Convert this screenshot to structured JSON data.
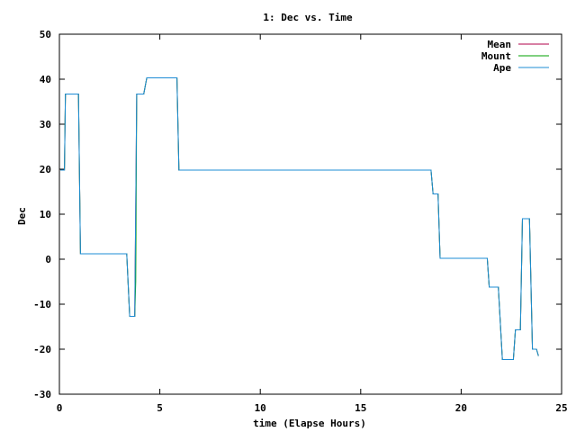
{
  "chart_data": {
    "type": "line",
    "title": "1: Dec vs. Time",
    "xlabel": "time (Elapse Hours)",
    "ylabel": "Dec",
    "xlim": [
      0,
      25
    ],
    "ylim": [
      -30,
      50
    ],
    "xticks": [
      0,
      5,
      10,
      15,
      20,
      25
    ],
    "yticks": [
      -30,
      -20,
      -10,
      0,
      10,
      20,
      30,
      40,
      50
    ],
    "grid": false,
    "legend_position": "top-right",
    "series": [
      {
        "name": "Mean",
        "color": "#b0004a",
        "points": [
          [
            0.05,
            19.8
          ],
          [
            0.25,
            19.8
          ],
          [
            0.3,
            36.7
          ],
          [
            0.95,
            36.7
          ],
          [
            1.05,
            1.2
          ],
          [
            3.35,
            1.2
          ],
          [
            3.5,
            -12.7
          ],
          [
            3.75,
            -12.7
          ],
          [
            3.85,
            36.7
          ],
          [
            4.2,
            36.7
          ],
          [
            4.35,
            40.3
          ],
          [
            5.85,
            40.3
          ],
          [
            5.95,
            19.8
          ],
          [
            18.5,
            19.8
          ],
          [
            18.6,
            14.5
          ],
          [
            18.85,
            14.5
          ],
          [
            18.95,
            0.2
          ],
          [
            21.3,
            0.2
          ],
          [
            21.4,
            -6.2
          ],
          [
            21.85,
            -6.2
          ],
          [
            22.05,
            -22.3
          ],
          [
            22.6,
            -22.3
          ],
          [
            22.7,
            -15.7
          ],
          [
            22.95,
            -15.7
          ],
          [
            23.05,
            9.0
          ],
          [
            23.4,
            9.0
          ],
          [
            23.55,
            -20.0
          ],
          [
            23.75,
            -20.0
          ],
          [
            23.85,
            -21.5
          ]
        ]
      },
      {
        "name": "Mount",
        "color": "#00a000",
        "points": [
          [
            0.05,
            19.8
          ],
          [
            0.25,
            19.8
          ],
          [
            0.3,
            36.7
          ],
          [
            0.95,
            36.7
          ],
          [
            1.05,
            1.2
          ],
          [
            3.35,
            1.2
          ],
          [
            3.5,
            -12.7
          ],
          [
            3.75,
            -12.7
          ],
          [
            3.8,
            -5.0
          ],
          [
            3.85,
            36.7
          ],
          [
            4.2,
            36.7
          ],
          [
            4.35,
            40.3
          ],
          [
            5.85,
            40.3
          ],
          [
            5.95,
            19.8
          ],
          [
            18.5,
            19.8
          ],
          [
            18.6,
            14.5
          ],
          [
            18.85,
            14.5
          ],
          [
            18.95,
            0.2
          ],
          [
            21.3,
            0.2
          ],
          [
            21.4,
            -6.2
          ],
          [
            21.85,
            -6.2
          ],
          [
            22.05,
            -22.3
          ],
          [
            22.6,
            -22.3
          ],
          [
            22.7,
            -15.7
          ],
          [
            22.95,
            -15.7
          ],
          [
            23.05,
            9.0
          ],
          [
            23.4,
            9.0
          ],
          [
            23.55,
            -20.0
          ],
          [
            23.75,
            -20.0
          ],
          [
            23.85,
            -21.5
          ]
        ]
      },
      {
        "name": "Ape",
        "color": "#1e8cd6",
        "points": [
          [
            0.05,
            19.8
          ],
          [
            0.25,
            19.8
          ],
          [
            0.3,
            36.7
          ],
          [
            0.95,
            36.7
          ],
          [
            1.05,
            1.2
          ],
          [
            3.35,
            1.2
          ],
          [
            3.5,
            -12.7
          ],
          [
            3.75,
            -12.7
          ],
          [
            3.85,
            36.7
          ],
          [
            4.2,
            36.7
          ],
          [
            4.35,
            40.3
          ],
          [
            5.85,
            40.3
          ],
          [
            5.95,
            19.8
          ],
          [
            16.3,
            19.8
          ],
          [
            18.5,
            19.8
          ],
          [
            18.6,
            14.5
          ],
          [
            18.85,
            14.5
          ],
          [
            18.95,
            0.2
          ],
          [
            21.3,
            0.2
          ],
          [
            21.4,
            -6.2
          ],
          [
            21.85,
            -6.2
          ],
          [
            22.05,
            -22.3
          ],
          [
            22.6,
            -22.3
          ],
          [
            22.7,
            -15.7
          ],
          [
            22.95,
            -15.7
          ],
          [
            23.05,
            9.0
          ],
          [
            23.4,
            9.0
          ],
          [
            23.55,
            -20.0
          ],
          [
            23.75,
            -20.0
          ],
          [
            23.85,
            -21.5
          ]
        ]
      }
    ]
  }
}
